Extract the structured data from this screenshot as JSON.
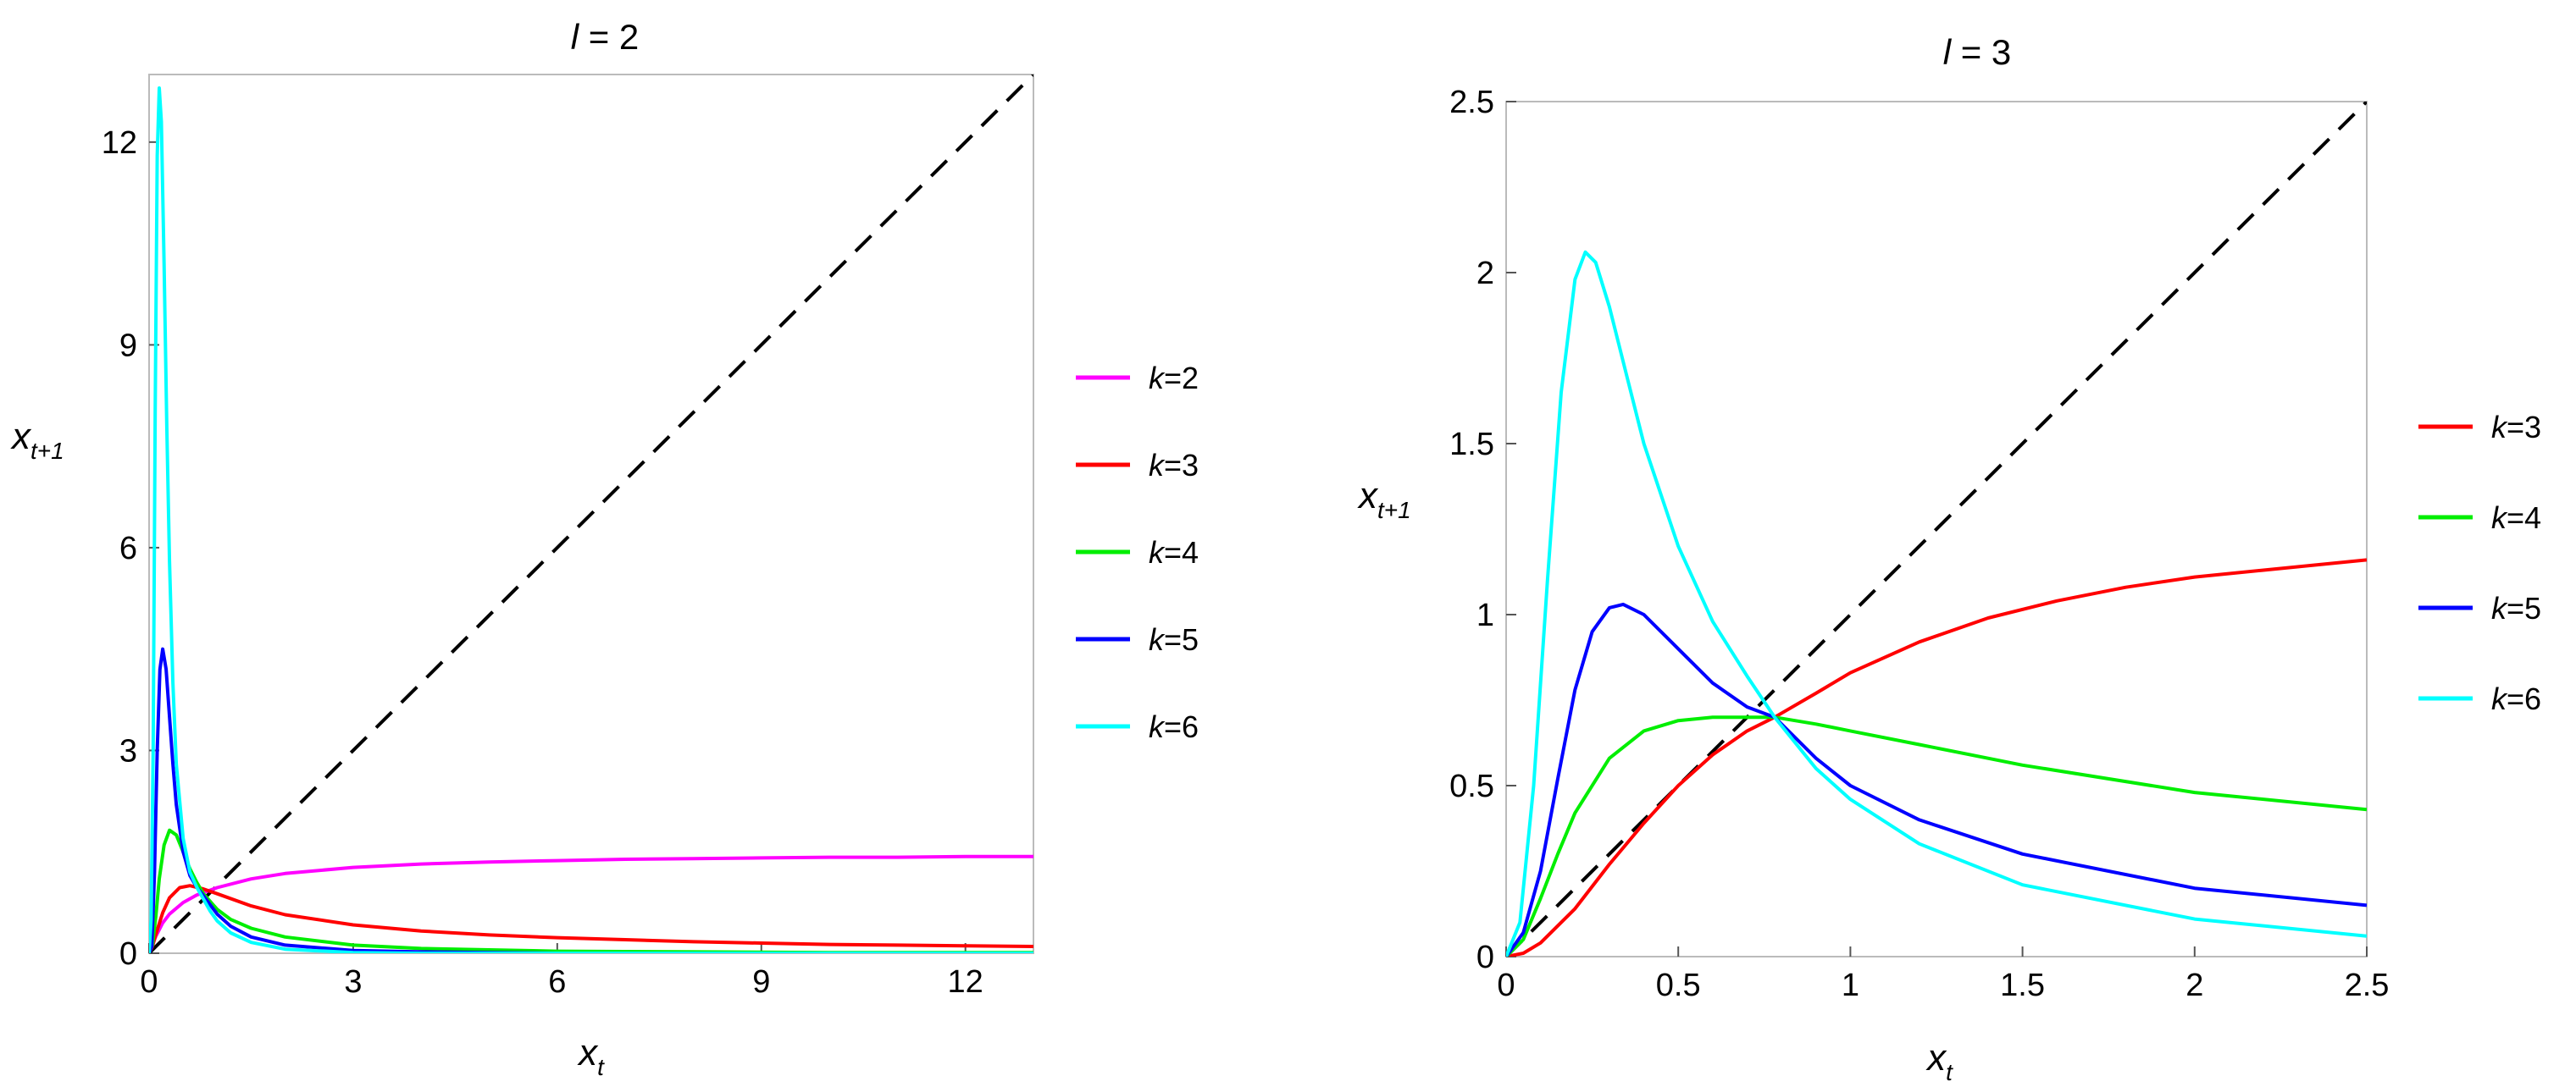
{
  "chart_data": [
    {
      "type": "line",
      "title_var": "l",
      "title_rest": " = 2",
      "xlabel": "x",
      "xlabel_sub": "t",
      "ylabel": "x",
      "ylabel_sub": "t+1",
      "xlim": [
        0,
        13
      ],
      "ylim": [
        0,
        13
      ],
      "xticks": [
        0,
        3,
        6,
        9,
        12
      ],
      "xtick_labels": [
        "0",
        "3",
        "6",
        "9",
        "12"
      ],
      "yticks": [
        0,
        3,
        6,
        9,
        12
      ],
      "ytick_labels": [
        "0",
        "3",
        "6",
        "9",
        "12"
      ],
      "grid": false,
      "legend_position": "right",
      "diagonal": {
        "from": [
          0,
          0
        ],
        "to": [
          13,
          13
        ],
        "style": "dashed",
        "color": "#000000"
      },
      "series": [
        {
          "name": "k=2",
          "label_var": "k",
          "label_rest": "=2",
          "color": "#ff00ff",
          "x": [
            0,
            0.05,
            0.1,
            0.2,
            0.3,
            0.5,
            0.7,
            1,
            1.5,
            2,
            3,
            4,
            5,
            6,
            7,
            8,
            9,
            10,
            11,
            12,
            13
          ],
          "y": [
            0,
            0.13,
            0.25,
            0.45,
            0.58,
            0.75,
            0.86,
            0.97,
            1.1,
            1.18,
            1.27,
            1.32,
            1.35,
            1.37,
            1.39,
            1.4,
            1.41,
            1.42,
            1.42,
            1.43,
            1.43
          ]
        },
        {
          "name": "k=3",
          "label_var": "k",
          "label_rest": "=3",
          "color": "#ff0000",
          "x": [
            0,
            0.05,
            0.1,
            0.2,
            0.3,
            0.45,
            0.6,
            0.8,
            1,
            1.5,
            2,
            3,
            4,
            5,
            6,
            7,
            8,
            9,
            10,
            11,
            12,
            13
          ],
          "y": [
            0,
            0.1,
            0.28,
            0.6,
            0.82,
            0.97,
            1.0,
            0.95,
            0.88,
            0.7,
            0.57,
            0.42,
            0.33,
            0.27,
            0.23,
            0.2,
            0.17,
            0.15,
            0.13,
            0.12,
            0.11,
            0.1
          ]
        },
        {
          "name": "k=4",
          "label_var": "k",
          "label_rest": "=4",
          "color": "#00ee00",
          "x": [
            0,
            0.05,
            0.1,
            0.15,
            0.22,
            0.3,
            0.4,
            0.5,
            0.6,
            0.7,
            0.8,
            1,
            1.2,
            1.5,
            2,
            3,
            4,
            5,
            6,
            8,
            10,
            13
          ],
          "y": [
            0,
            0.12,
            0.55,
            1.1,
            1.6,
            1.82,
            1.75,
            1.5,
            1.25,
            1.05,
            0.88,
            0.65,
            0.5,
            0.37,
            0.24,
            0.12,
            0.07,
            0.05,
            0.03,
            0.02,
            0.01,
            0.01
          ]
        },
        {
          "name": "k=5",
          "label_var": "k",
          "label_rest": "=5",
          "color": "#0000ff",
          "x": [
            0,
            0.04,
            0.08,
            0.12,
            0.16,
            0.2,
            0.25,
            0.3,
            0.35,
            0.4,
            0.5,
            0.6,
            0.7,
            0.8,
            1,
            1.2,
            1.5,
            2,
            3,
            4,
            5,
            6,
            7,
            13
          ],
          "y": [
            0,
            0.1,
            1.2,
            3.0,
            4.2,
            4.5,
            4.2,
            3.5,
            2.8,
            2.2,
            1.5,
            1.15,
            0.98,
            0.85,
            0.58,
            0.4,
            0.24,
            0.12,
            0.04,
            0.02,
            0.01,
            0.0,
            0.0,
            0.0
          ]
        },
        {
          "name": "k=6",
          "label_var": "k",
          "label_rest": "=6",
          "color": "#00ffff",
          "x": [
            0,
            0.03,
            0.06,
            0.09,
            0.12,
            0.15,
            0.18,
            0.22,
            0.26,
            0.3,
            0.35,
            0.4,
            0.5,
            0.6,
            0.7,
            0.8,
            0.9,
            1,
            1.2,
            1.5,
            2,
            3,
            4,
            13
          ],
          "y": [
            0,
            0.5,
            3.0,
            8.0,
            11.8,
            12.8,
            12.3,
            10.2,
            7.8,
            5.8,
            4.0,
            2.8,
            1.7,
            1.2,
            0.98,
            0.8,
            0.62,
            0.48,
            0.3,
            0.16,
            0.06,
            0.01,
            0.0,
            0.0
          ]
        }
      ]
    },
    {
      "type": "line",
      "title_var": "l",
      "title_rest": " = 3",
      "xlabel": "x",
      "xlabel_sub": "t",
      "ylabel": "x",
      "ylabel_sub": "t+1",
      "xlim": [
        0,
        2.5
      ],
      "ylim": [
        0,
        2.5
      ],
      "xticks": [
        0,
        0.5,
        1,
        1.5,
        2,
        2.5
      ],
      "xtick_labels": [
        "0",
        "0.5",
        "1",
        "1.5",
        "2",
        "2.5"
      ],
      "yticks": [
        0,
        0.5,
        1,
        1.5,
        2,
        2.5
      ],
      "ytick_labels": [
        "0",
        "0.5",
        "1",
        "1.5",
        "2",
        "2.5"
      ],
      "grid": false,
      "legend_position": "right",
      "diagonal": {
        "from": [
          0,
          0
        ],
        "to": [
          2.5,
          2.5
        ],
        "style": "dashed",
        "color": "#000000"
      },
      "series": [
        {
          "name": "k=3",
          "label_var": "k",
          "label_rest": "=3",
          "color": "#ff0000",
          "x": [
            0,
            0.05,
            0.1,
            0.2,
            0.3,
            0.4,
            0.5,
            0.6,
            0.7,
            0.78,
            0.9,
            1,
            1.2,
            1.4,
            1.6,
            1.8,
            2,
            2.2,
            2.5
          ],
          "y": [
            0,
            0.01,
            0.04,
            0.14,
            0.27,
            0.39,
            0.5,
            0.59,
            0.66,
            0.7,
            0.77,
            0.83,
            0.92,
            0.99,
            1.04,
            1.08,
            1.11,
            1.13,
            1.16
          ]
        },
        {
          "name": "k=4",
          "label_var": "k",
          "label_rest": "=4",
          "color": "#00ee00",
          "x": [
            0,
            0.05,
            0.1,
            0.15,
            0.2,
            0.3,
            0.4,
            0.5,
            0.6,
            0.7,
            0.78,
            0.9,
            1,
            1.2,
            1.5,
            2,
            2.5
          ],
          "y": [
            0,
            0.05,
            0.17,
            0.3,
            0.42,
            0.58,
            0.66,
            0.69,
            0.7,
            0.7,
            0.7,
            0.68,
            0.66,
            0.62,
            0.56,
            0.48,
            0.43
          ]
        },
        {
          "name": "k=5",
          "label_var": "k",
          "label_rest": "=5",
          "color": "#0000ff",
          "x": [
            0,
            0.05,
            0.1,
            0.15,
            0.2,
            0.25,
            0.3,
            0.34,
            0.4,
            0.5,
            0.6,
            0.7,
            0.78,
            0.9,
            1,
            1.2,
            1.5,
            2,
            2.5
          ],
          "y": [
            0,
            0.07,
            0.25,
            0.52,
            0.78,
            0.95,
            1.02,
            1.03,
            1.0,
            0.9,
            0.8,
            0.73,
            0.7,
            0.58,
            0.5,
            0.4,
            0.3,
            0.2,
            0.15
          ]
        },
        {
          "name": "k=6",
          "label_var": "k",
          "label_rest": "=6",
          "color": "#00ffff",
          "x": [
            0,
            0.04,
            0.08,
            0.12,
            0.16,
            0.2,
            0.23,
            0.26,
            0.3,
            0.35,
            0.4,
            0.5,
            0.6,
            0.7,
            0.78,
            0.9,
            1,
            1.2,
            1.5,
            2,
            2.5
          ],
          "y": [
            0,
            0.1,
            0.5,
            1.1,
            1.65,
            1.98,
            2.06,
            2.03,
            1.9,
            1.7,
            1.5,
            1.2,
            0.98,
            0.82,
            0.7,
            0.55,
            0.46,
            0.33,
            0.21,
            0.11,
            0.06
          ]
        }
      ]
    }
  ]
}
